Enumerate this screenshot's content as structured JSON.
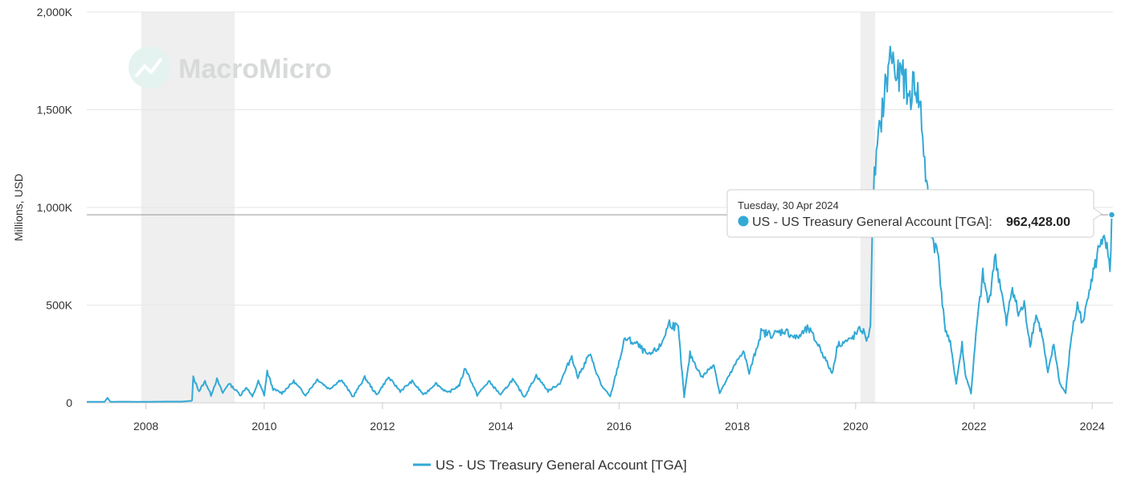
{
  "watermark": "MacroMicro",
  "colors": {
    "series": "#33a9d6",
    "recession": "#efefef",
    "grid": "#e6e6e6",
    "axis": "#cccccc"
  },
  "tooltip": {
    "date": "Tuesday, 30 Apr 2024",
    "series_name": "US - US Treasury General Account [TGA]:",
    "value": "962,428.00"
  },
  "chart_data": {
    "type": "line",
    "title": "",
    "ylabel": "Millions, USD",
    "xlabel": "",
    "ylim": [
      0,
      2000000
    ],
    "xlim": [
      2007.0,
      2024.35
    ],
    "y_ticks": [
      {
        "value": 0,
        "label": "0"
      },
      {
        "value": 500000,
        "label": "500K"
      },
      {
        "value": 1000000,
        "label": "1,000K"
      },
      {
        "value": 1500000,
        "label": "1,500K"
      },
      {
        "value": 2000000,
        "label": "2,000K"
      }
    ],
    "x_ticks": [
      {
        "value": 2008,
        "label": "2008"
      },
      {
        "value": 2010,
        "label": "2010"
      },
      {
        "value": 2012,
        "label": "2012"
      },
      {
        "value": 2014,
        "label": "2014"
      },
      {
        "value": 2016,
        "label": "2016"
      },
      {
        "value": 2018,
        "label": "2018"
      },
      {
        "value": 2020,
        "label": "2020"
      },
      {
        "value": 2022,
        "label": "2022"
      },
      {
        "value": 2024,
        "label": "2024"
      }
    ],
    "recessions": [
      [
        2007.92,
        2009.5
      ],
      [
        2020.08,
        2020.33
      ]
    ],
    "legend": "bottom-center",
    "series": [
      {
        "name": "US - US Treasury General Account [TGA]",
        "x": [
          2007.0,
          2007.3,
          2007.35,
          2007.4,
          2007.6,
          2007.9,
          2008.3,
          2008.6,
          2008.78,
          2008.8,
          2008.9,
          2009.0,
          2009.1,
          2009.2,
          2009.3,
          2009.4,
          2009.5,
          2009.6,
          2009.7,
          2009.8,
          2009.9,
          2010.0,
          2010.05,
          2010.15,
          2010.3,
          2010.5,
          2010.7,
          2010.9,
          2011.1,
          2011.3,
          2011.5,
          2011.7,
          2011.9,
          2012.1,
          2012.3,
          2012.5,
          2012.7,
          2012.9,
          2013.1,
          2013.3,
          2013.4,
          2013.6,
          2013.8,
          2014.0,
          2014.2,
          2014.4,
          2014.6,
          2014.8,
          2015.0,
          2015.2,
          2015.3,
          2015.5,
          2015.7,
          2015.85,
          2015.95,
          2016.1,
          2016.3,
          2016.5,
          2016.7,
          2016.85,
          2017.0,
          2017.1,
          2017.2,
          2017.4,
          2017.6,
          2017.7,
          2017.9,
          2018.1,
          2018.2,
          2018.4,
          2018.6,
          2018.8,
          2019.0,
          2019.2,
          2019.4,
          2019.6,
          2019.7,
          2019.9,
          2020.1,
          2020.2,
          2020.25,
          2020.3,
          2020.35,
          2020.45,
          2020.55,
          2020.6,
          2020.7,
          2020.8,
          2020.9,
          2021.0,
          2021.1,
          2021.2,
          2021.3,
          2021.4,
          2021.5,
          2021.6,
          2021.7,
          2021.8,
          2021.85,
          2021.95,
          2022.05,
          2022.15,
          2022.25,
          2022.35,
          2022.45,
          2022.55,
          2022.65,
          2022.75,
          2022.85,
          2022.95,
          2023.05,
          2023.15,
          2023.25,
          2023.35,
          2023.45,
          2023.55,
          2023.65,
          2023.75,
          2023.85,
          2023.95,
          2024.05,
          2024.15,
          2024.25,
          2024.3,
          2024.33
        ],
        "y": [
          5000,
          5000,
          25000,
          5000,
          6000,
          5000,
          6000,
          6000,
          10000,
          130000,
          60000,
          110000,
          40000,
          120000,
          50000,
          100000,
          70000,
          40000,
          80000,
          30000,
          110000,
          40000,
          160000,
          70000,
          50000,
          110000,
          40000,
          120000,
          70000,
          120000,
          30000,
          130000,
          40000,
          130000,
          60000,
          110000,
          40000,
          100000,
          50000,
          90000,
          180000,
          40000,
          110000,
          40000,
          120000,
          30000,
          140000,
          60000,
          100000,
          240000,
          130000,
          250000,
          90000,
          30000,
          150000,
          330000,
          300000,
          240000,
          290000,
          410000,
          380000,
          30000,
          250000,
          130000,
          200000,
          50000,
          160000,
          270000,
          150000,
          360000,
          350000,
          370000,
          330000,
          380000,
          280000,
          150000,
          300000,
          320000,
          380000,
          320000,
          410000,
          1100000,
          1250000,
          1500000,
          1700000,
          1800000,
          1650000,
          1680000,
          1550000,
          1650000,
          1500000,
          1100000,
          840000,
          750000,
          400000,
          300000,
          100000,
          300000,
          150000,
          50000,
          400000,
          650000,
          500000,
          750000,
          600000,
          400000,
          600000,
          450000,
          500000,
          300000,
          450000,
          350000,
          150000,
          300000,
          100000,
          50000,
          350000,
          500000,
          400000,
          600000,
          700000,
          850000,
          780000,
          650000,
          962428
        ]
      }
    ]
  }
}
